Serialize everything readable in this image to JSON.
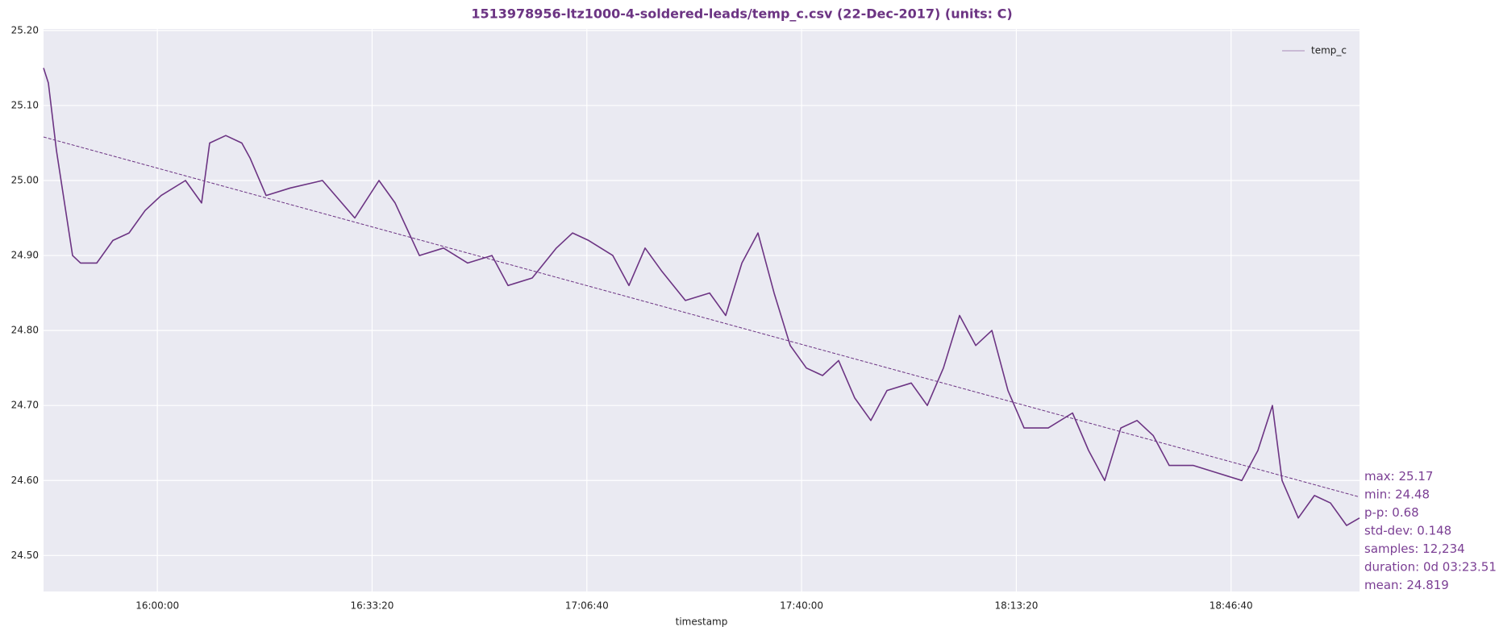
{
  "chart_data": {
    "type": "line",
    "title": "1513978956-ltz1000-4-soldered-leads/temp_c.csv (22-Dec-2017) (units: C)",
    "x_label": "timestamp",
    "x": [
      56540,
      56585,
      56660,
      56735,
      56810,
      56885,
      57036,
      57186,
      57336,
      57486,
      57636,
      57862,
      58012,
      58087,
      58237,
      58387,
      58463,
      58613,
      58838,
      59138,
      59439,
      59664,
      59814,
      60040,
      60265,
      60490,
      60716,
      60866,
      61091,
      61316,
      61467,
      61617,
      61842,
      61992,
      62142,
      62293,
      62518,
      62743,
      62893,
      63044,
      63194,
      63344,
      63494,
      63644,
      63795,
      63945,
      64095,
      64245,
      64395,
      64621,
      64771,
      64921,
      65071,
      65222,
      65372,
      65522,
      65672,
      65897,
      66123,
      66273,
      66423,
      66573,
      66724,
      66874,
      67024,
      67249,
      67475,
      67700,
      67850,
      67985,
      68075,
      68226,
      68376,
      68526,
      68676,
      68796
    ],
    "series": [
      {
        "name": "temp_c",
        "color": "#6c3483",
        "values": [
          25.15,
          25.13,
          25.04,
          24.97,
          24.9,
          24.89,
          24.89,
          24.92,
          24.93,
          24.96,
          24.98,
          25.0,
          24.97,
          25.05,
          25.06,
          25.05,
          25.03,
          24.98,
          24.99,
          25.0,
          24.95,
          25.0,
          24.97,
          24.9,
          24.91,
          24.89,
          24.9,
          24.86,
          24.87,
          24.91,
          24.93,
          24.92,
          24.9,
          24.86,
          24.91,
          24.88,
          24.84,
          24.85,
          24.82,
          24.89,
          24.93,
          24.85,
          24.78,
          24.75,
          24.74,
          24.76,
          24.71,
          24.68,
          24.72,
          24.73,
          24.7,
          24.75,
          24.82,
          24.78,
          24.8,
          24.72,
          24.67,
          24.67,
          24.69,
          24.64,
          24.6,
          24.67,
          24.68,
          24.66,
          24.62,
          24.62,
          24.61,
          24.6,
          24.64,
          24.7,
          24.6,
          24.55,
          24.58,
          24.57,
          24.54,
          24.55
        ]
      }
    ],
    "trend": {
      "x": [
        56540,
        68796
      ],
      "values": [
        25.058,
        24.578
      ]
    },
    "xlim": [
      56540,
      68796
    ],
    "xticks": [
      {
        "value": 57600,
        "label": "16:00:00"
      },
      {
        "value": 59600,
        "label": "16:33:20"
      },
      {
        "value": 61600,
        "label": "17:06:40"
      },
      {
        "value": 63600,
        "label": "17:40:00"
      },
      {
        "value": 65600,
        "label": "18:13:20"
      },
      {
        "value": 67600,
        "label": "18:46:40"
      }
    ],
    "ylim": [
      24.452,
      25.202
    ],
    "yticks": [
      {
        "value": 24.5,
        "label": "24.50"
      },
      {
        "value": 24.6,
        "label": "24.60"
      },
      {
        "value": 24.7,
        "label": "24.70"
      },
      {
        "value": 24.8,
        "label": "24.80"
      },
      {
        "value": 24.9,
        "label": "24.90"
      },
      {
        "value": 25.0,
        "label": "25.00"
      },
      {
        "value": 25.1,
        "label": "25.10"
      },
      {
        "value": 25.2,
        "label": "25.20"
      }
    ],
    "grid": true,
    "legend": "upper right",
    "stats": [
      "max: 25.17",
      "min: 24.48",
      "p-p: 0.68",
      "std-dev: 0.148",
      "samples: 12,234",
      "duration: 0d 03:23.51",
      "mean: 24.819"
    ]
  }
}
